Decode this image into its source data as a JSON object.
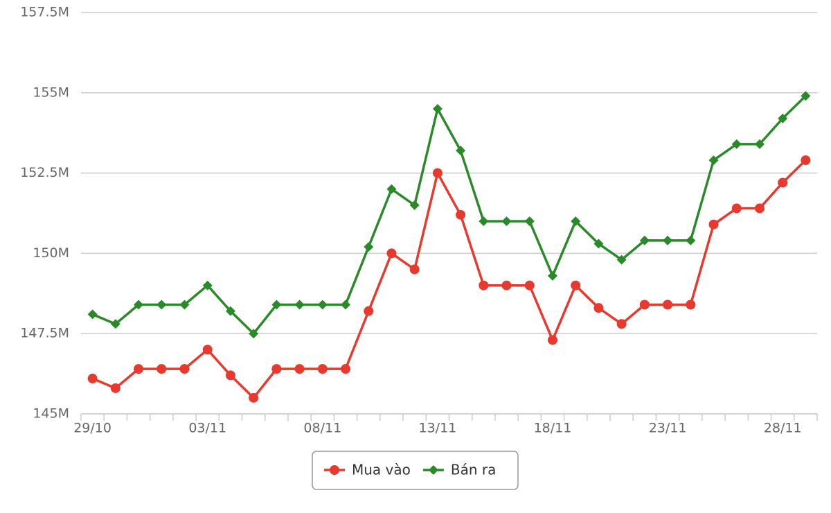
{
  "chart_data": {
    "type": "line",
    "categories": [
      "29/10",
      null,
      null,
      null,
      null,
      "03/11",
      null,
      null,
      null,
      null,
      "08/11",
      null,
      null,
      null,
      null,
      "13/11",
      null,
      null,
      null,
      null,
      "18/11",
      null,
      null,
      null,
      null,
      "23/11",
      null,
      null,
      null,
      null,
      "28/11",
      null
    ],
    "series": [
      {
        "name": "Mua vào",
        "color": "#e8392f",
        "marker": "circle",
        "values": [
          146.1,
          145.8,
          146.4,
          146.4,
          146.4,
          147.0,
          146.2,
          145.5,
          146.4,
          146.4,
          146.4,
          146.4,
          148.2,
          150.0,
          149.5,
          152.5,
          151.2,
          149.0,
          149.0,
          149.0,
          147.3,
          149.0,
          148.3,
          147.8,
          148.4,
          148.4,
          148.4,
          150.9,
          151.4,
          151.4,
          152.2,
          152.9
        ]
      },
      {
        "name": "Bán ra",
        "color": "#2a8a2a",
        "marker": "diamond",
        "values": [
          148.1,
          147.8,
          148.4,
          148.4,
          148.4,
          149.0,
          148.2,
          147.5,
          148.4,
          148.4,
          148.4,
          148.4,
          150.2,
          152.0,
          151.5,
          154.5,
          153.2,
          151.0,
          151.0,
          151.0,
          149.3,
          151.0,
          150.3,
          149.8,
          150.4,
          150.4,
          150.4,
          152.9,
          153.4,
          153.4,
          154.2,
          154.9
        ]
      }
    ],
    "ylim": [
      145,
      157.5
    ],
    "yticks": [
      {
        "value": 145,
        "label": "145M"
      },
      {
        "value": 147.5,
        "label": "147.5M"
      },
      {
        "value": 150,
        "label": "150M"
      },
      {
        "value": 152.5,
        "label": "152.5M"
      },
      {
        "value": 155,
        "label": "155M"
      },
      {
        "value": 157.5,
        "label": "157.5M"
      }
    ],
    "grid": true
  }
}
